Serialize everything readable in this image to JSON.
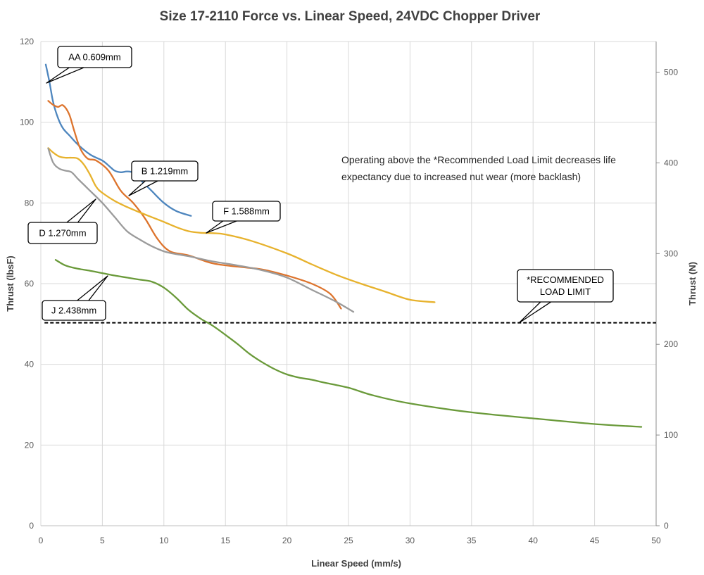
{
  "chart_data": {
    "type": "line",
    "title": "Size 17-2110 Force vs. Linear Speed, 24VDC Chopper Driver",
    "xlabel": "Linear Speed (mm/s)",
    "ylabel": "Thrust (lbsF)",
    "y2label": "Thrust (N)",
    "xlim": [
      0,
      50
    ],
    "ylim": [
      0,
      120
    ],
    "y2lim": [
      0,
      533.8
    ],
    "xticks": [
      0,
      5,
      10,
      15,
      20,
      25,
      30,
      35,
      40,
      45,
      50
    ],
    "yticks": [
      0,
      20,
      40,
      60,
      80,
      100,
      120
    ],
    "y2ticks": [
      0,
      100,
      200,
      300,
      400,
      500
    ],
    "grid": true,
    "note_lines": [
      "Operating above the *Recommended Load Limit decreases life",
      "expectancy due to increased nut wear (more backlash)"
    ],
    "limit": {
      "y": 50.3,
      "lines": [
        "*RECOMMENDED",
        "LOAD LIMIT"
      ],
      "color": "#000000"
    },
    "series": [
      {
        "name": "AA 0.609mm",
        "color": "#4e86be",
        "x": [
          0.4,
          0.7,
          1.0,
          1.4,
          1.8,
          2.3,
          3.0,
          4.0,
          5.0,
          5.6,
          6.0,
          6.5,
          7.0,
          7.5,
          8.0,
          9.0,
          10.0,
          11.0,
          12.2
        ],
        "y": [
          114.3,
          110,
          105,
          101,
          98.5,
          96.8,
          94.5,
          92,
          90.5,
          89,
          88,
          87.6,
          87.8,
          87.5,
          86,
          83,
          80,
          78,
          76.8
        ]
      },
      {
        "name": "B 1.219mm",
        "color": "#dd742d",
        "x": [
          0.6,
          1.0,
          1.4,
          1.8,
          2.3,
          2.7,
          3.2,
          3.8,
          4.5,
          5.5,
          6.5,
          7.5,
          8.5,
          9.5,
          10.5,
          12,
          14,
          16,
          18,
          20,
          22,
          23.5,
          24.4
        ],
        "y": [
          105.3,
          104.3,
          103.8,
          104.2,
          102,
          98,
          93.5,
          91,
          90.5,
          88,
          83,
          80,
          76,
          71,
          68,
          67,
          65,
          64.2,
          63.5,
          62,
          60,
          57.5,
          53.8
        ]
      },
      {
        "name": "F 1.588mm",
        "color": "#e7b22d",
        "x": [
          0.6,
          1.0,
          1.5,
          2.0,
          2.5,
          3.0,
          3.5,
          4.0,
          4.5,
          5.0,
          6.0,
          7.0,
          8.0,
          9.0,
          10.0,
          11.0,
          12.0,
          13.0,
          14.0,
          15.0,
          17.0,
          20.0,
          22.0,
          24.0,
          26.0,
          28.0,
          30.0,
          32.0
        ],
        "y": [
          93.6,
          92.5,
          91.5,
          91.2,
          91.2,
          91,
          89.5,
          87,
          84,
          82.5,
          80.5,
          79,
          77.7,
          76.5,
          75.3,
          74,
          73,
          72.6,
          72.5,
          72.2,
          70.7,
          67.5,
          64.8,
          62.2,
          60,
          58,
          56,
          55.4
        ]
      },
      {
        "name": "D 1.270mm",
        "color": "#9b9b9b",
        "x": [
          0.6,
          1.0,
          1.5,
          2.0,
          2.5,
          3.0,
          3.5,
          4.0,
          5.0,
          6.0,
          7.0,
          8.0,
          9.0,
          10.0,
          11.0,
          12.0,
          14.0,
          16.0,
          18.0,
          20.0,
          22.0,
          24.0,
          25.4
        ],
        "y": [
          93.5,
          90,
          88.5,
          88,
          87.6,
          86,
          84.5,
          83,
          80,
          76.5,
          73,
          71,
          69.3,
          68,
          67.3,
          66.8,
          65.5,
          64.5,
          63.3,
          61.5,
          58.5,
          55.5,
          53
        ]
      },
      {
        "name": "J 2.438mm",
        "color": "#6a9a3a",
        "x": [
          1.2,
          2.0,
          3.0,
          4.0,
          5.0,
          6.0,
          7.0,
          8.0,
          9.0,
          10.0,
          11.0,
          12.0,
          13.0,
          14.0,
          15.0,
          16.0,
          17.0,
          18.0,
          19.0,
          20.0,
          21.0,
          22.0,
          23.0,
          25.0,
          27.0,
          30.0,
          35.0,
          40.0,
          45.0,
          48.8
        ],
        "y": [
          65.9,
          64.5,
          63.7,
          63.2,
          62.6,
          62,
          61.5,
          61,
          60.5,
          59,
          56.5,
          53.5,
          51.3,
          49.5,
          47.3,
          45,
          42.5,
          40.5,
          38.8,
          37.5,
          36.7,
          36.2,
          35.5,
          34.2,
          32.3,
          30.3,
          28.1,
          26.6,
          25.2,
          24.5
        ]
      }
    ],
    "callouts": [
      {
        "series": 0,
        "lines": [
          "AA 0.609mm"
        ]
      },
      {
        "series": 1,
        "lines": [
          "B 1.219mm"
        ]
      },
      {
        "series": 3,
        "lines": [
          "D 1.270mm"
        ]
      },
      {
        "series": 2,
        "lines": [
          "F 1.588mm"
        ]
      },
      {
        "series": 4,
        "lines": [
          "J 2.438mm"
        ]
      }
    ]
  }
}
